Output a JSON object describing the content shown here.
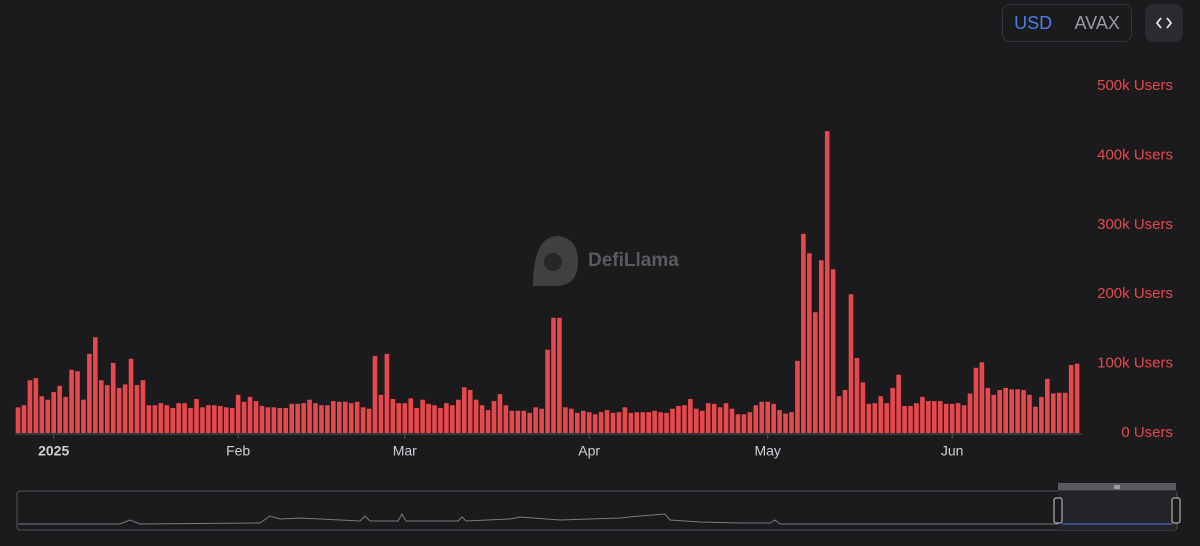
{
  "controls": {
    "currency_options": [
      "USD",
      "AVAX"
    ]
  },
  "chart_data": {
    "type": "bar",
    "watermark": "DefiLlama",
    "color": "#e5484d",
    "tick_color": "#e5484d",
    "categories": [
      null,
      null,
      null,
      null,
      null,
      null,
      "2025",
      null,
      null,
      null,
      null,
      null,
      null,
      null,
      null,
      null,
      null,
      null,
      null,
      null,
      null,
      null,
      null,
      null,
      null,
      null,
      null,
      null,
      null,
      null,
      null,
      null,
      null,
      null,
      null,
      null,
      null,
      "Feb",
      null,
      null,
      null,
      null,
      null,
      null,
      null,
      null,
      null,
      null,
      null,
      null,
      null,
      null,
      null,
      null,
      null,
      null,
      null,
      null,
      null,
      null,
      null,
      null,
      null,
      null,
      null,
      "Mar",
      null,
      null,
      null,
      null,
      null,
      null,
      null,
      null,
      null,
      null,
      null,
      null,
      null,
      null,
      null,
      null,
      null,
      null,
      null,
      null,
      null,
      null,
      null,
      null,
      null,
      null,
      null,
      null,
      null,
      null,
      "Apr",
      null,
      null,
      null,
      null,
      null,
      null,
      null,
      null,
      null,
      null,
      null,
      null,
      null,
      null,
      null,
      null,
      null,
      null,
      null,
      null,
      null,
      null,
      null,
      null,
      null,
      null,
      null,
      null,
      null,
      "May",
      null,
      null,
      null,
      null,
      null,
      null,
      null,
      null,
      null,
      null,
      null,
      null,
      null,
      null,
      null,
      null,
      null,
      null,
      null,
      null,
      null,
      null,
      null,
      null,
      null,
      null,
      null,
      null,
      null,
      null,
      "Jun",
      null,
      null,
      null,
      null,
      null,
      null,
      null,
      null,
      null,
      null,
      null,
      null,
      null,
      null,
      null,
      null,
      null,
      null,
      null,
      null,
      null
    ],
    "values": [
      37000,
      40000,
      76000,
      79000,
      53000,
      48000,
      59000,
      68000,
      52000,
      91000,
      89000,
      48000,
      114000,
      138000,
      76000,
      69000,
      101000,
      65000,
      70000,
      107000,
      69000,
      76000,
      40000,
      40000,
      43000,
      40000,
      36000,
      43000,
      43000,
      36000,
      49000,
      37000,
      40000,
      40000,
      39000,
      37000,
      36000,
      55000,
      45000,
      52000,
      46000,
      39000,
      37000,
      37000,
      36000,
      36000,
      42000,
      42000,
      43000,
      48000,
      43000,
      40000,
      40000,
      46000,
      45000,
      45000,
      43000,
      45000,
      37000,
      35000,
      111000,
      55000,
      114000,
      49000,
      43000,
      43000,
      50000,
      36000,
      48000,
      42000,
      40000,
      36000,
      43000,
      40000,
      48000,
      66000,
      62000,
      48000,
      40000,
      33000,
      46000,
      56000,
      40000,
      32000,
      32000,
      32000,
      29000,
      37000,
      35000,
      120000,
      166000,
      166000,
      37000,
      35000,
      29000,
      32000,
      30000,
      27000,
      30000,
      33000,
      29000,
      30000,
      37000,
      29000,
      30000,
      30000,
      30000,
      32000,
      30000,
      29000,
      35000,
      39000,
      40000,
      49000,
      35000,
      32000,
      43000,
      42000,
      37000,
      43000,
      35000,
      27000,
      27000,
      30000,
      40000,
      45000,
      45000,
      42000,
      33000,
      28000,
      30000,
      104000,
      287000,
      259000,
      174000,
      249000,
      435000,
      236000,
      53000,
      62000,
      200000,
      108000,
      73000,
      42000,
      43000,
      53000,
      43000,
      65000,
      84000,
      39000,
      39000,
      43000,
      52000,
      46000,
      46000,
      46000,
      42000,
      42000,
      43000,
      40000,
      57000,
      94000,
      102000,
      65000,
      55000,
      62000,
      65000,
      63000,
      63000,
      62000,
      55000,
      38000,
      52000,
      78000,
      57000,
      58000,
      58000,
      98000,
      100000
    ],
    "ylim": [
      0,
      500000
    ],
    "yticks": [
      {
        "value": 0,
        "label": "0 Users"
      },
      {
        "value": 100000,
        "label": "100k Users"
      },
      {
        "value": 200000,
        "label": "200k Users"
      },
      {
        "value": 300000,
        "label": "300k Users"
      },
      {
        "value": 400000,
        "label": "400k Users"
      },
      {
        "value": 500000,
        "label": "500k Users"
      }
    ],
    "grid": false
  }
}
